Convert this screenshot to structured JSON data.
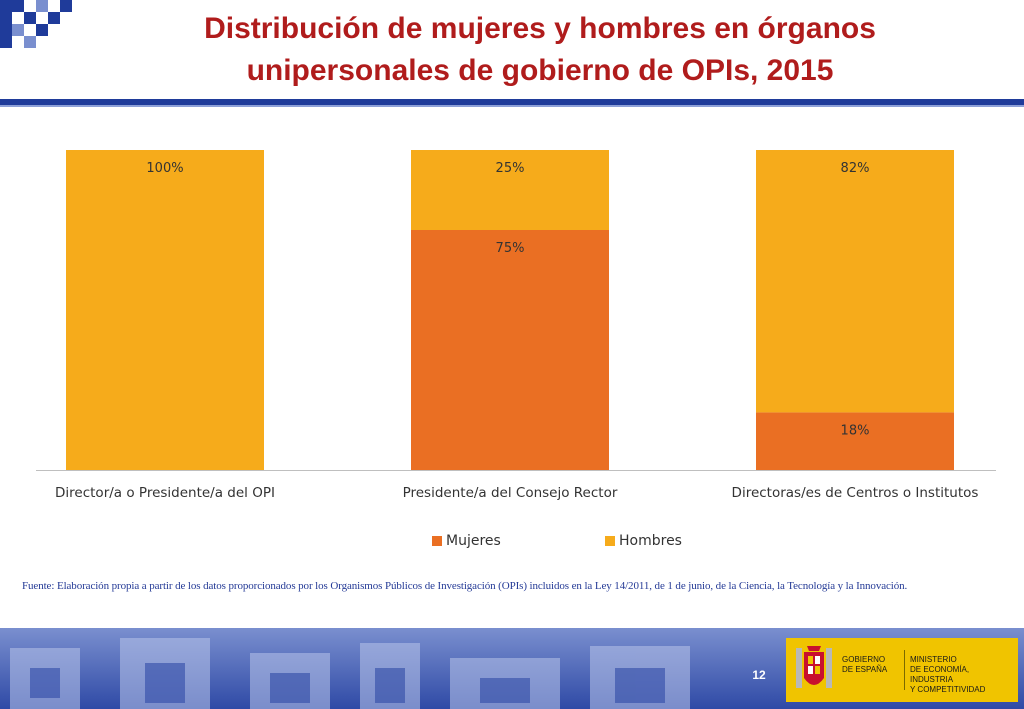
{
  "title": {
    "line1": "Distribución  de mujeres y hombres en órganos",
    "line2": "unipersonales de gobierno de OPIs, 2015"
  },
  "colors": {
    "mujeres": "#ea6f23",
    "hombres": "#f6ab1b",
    "title": "#b01c1c",
    "rule": "#1f3b9a"
  },
  "chart_data": {
    "type": "bar",
    "stacked": true,
    "title": "",
    "xlabel": "",
    "ylabel": "",
    "ylim": [
      0,
      100
    ],
    "grid": false,
    "legend_position": "bottom",
    "categories": [
      "Director/a o Presidente/a del OPI",
      "Presidente/a del Consejo Rector",
      "Directoras/es de Centros o Institutos"
    ],
    "series": [
      {
        "name": "Mujeres",
        "color": "#ea6f23",
        "values": [
          0,
          75,
          18
        ],
        "labels": [
          "",
          "75%",
          "18%"
        ]
      },
      {
        "name": "Hombres",
        "color": "#f6ab1b",
        "values": [
          100,
          25,
          82
        ],
        "labels": [
          "100%",
          "25%",
          "82%"
        ]
      }
    ]
  },
  "legend": {
    "mujeres": "Mujeres",
    "hombres": "Hombres"
  },
  "source": "Fuente: Elaboración propia a partir de los datos proporcionados por los Organismos Públicos de Investigación (OPIs) incluidos en la Ley 14/2011, de 1 de junio, de la Ciencia, la Tecnología y la Innovación.",
  "footer": {
    "page_number": "12",
    "gov_line1": "GOBIERNO",
    "gov_line2": "DE ESPAÑA",
    "min_line1": "MINISTERIO",
    "min_line2": "DE ECONOMÍA, INDUSTRIA",
    "min_line3": "Y COMPETITIVIDAD",
    "icons": [
      "coat-of-arms-icon",
      "checker-decoration-icon"
    ]
  }
}
